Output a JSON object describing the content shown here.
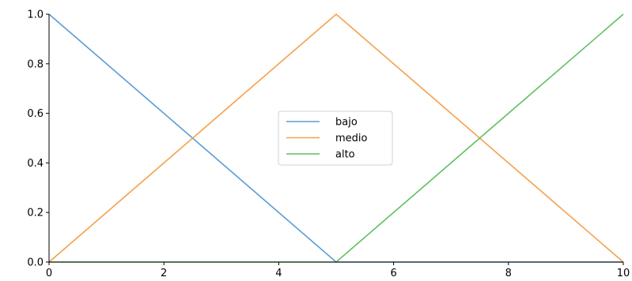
{
  "chart_data": {
    "type": "line",
    "title": "",
    "xlabel": "",
    "ylabel": "",
    "xlim": [
      0,
      10
    ],
    "ylim": [
      0,
      1.0
    ],
    "xticks": [
      0,
      2,
      4,
      6,
      8,
      10
    ],
    "xtick_labels": [
      "0",
      "2",
      "4",
      "6",
      "8",
      "10"
    ],
    "yticks": [
      0,
      0.2,
      0.4,
      0.6,
      0.8,
      1.0
    ],
    "ytick_labels": [
      "0.0",
      "0.2",
      "0.4",
      "0.6",
      "0.8",
      "1.0"
    ],
    "grid": false,
    "legend_position": "center",
    "series": [
      {
        "name": "bajo",
        "color": "#5b9bd5",
        "x": [
          0,
          5,
          10
        ],
        "y": [
          1,
          0,
          0
        ]
      },
      {
        "name": "medio",
        "color": "#f5a04a",
        "x": [
          0,
          5,
          10
        ],
        "y": [
          0,
          1,
          0
        ]
      },
      {
        "name": "alto",
        "color": "#5fbf5f",
        "x": [
          0,
          5,
          10
        ],
        "y": [
          0,
          0,
          1
        ]
      }
    ]
  }
}
